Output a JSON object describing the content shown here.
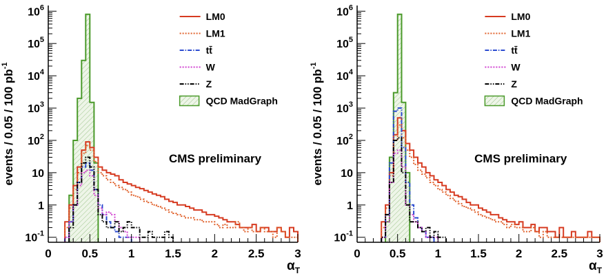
{
  "chart_data": [
    {
      "type": "line",
      "subtype": "step-histogram",
      "ylabel": "events / 0.05 / 100 pb",
      "ylabel_superscript": "-1",
      "xlabel": "α",
      "xlabel_subscript": "T",
      "annotation": "CMS preliminary",
      "yscale": "log",
      "xlim": [
        0,
        3
      ],
      "ylim": [
        0.07,
        1500000
      ],
      "bin_width": 0.05,
      "x_start": 0,
      "x_ticks": [
        "0",
        "0.5",
        "1",
        "1.5",
        "2",
        "2.5",
        "3"
      ],
      "y_ticks": [
        {
          "base": "10",
          "exp": "-1",
          "v": 0.1
        },
        {
          "base": "1",
          "exp": "",
          "v": 1
        },
        {
          "base": "10",
          "exp": "",
          "v": 10
        },
        {
          "base": "10",
          "exp": "2",
          "v": 100
        },
        {
          "base": "10",
          "exp": "3",
          "v": 1000
        },
        {
          "base": "10",
          "exp": "4",
          "v": 10000
        },
        {
          "base": "10",
          "exp": "5",
          "v": 100000
        },
        {
          "base": "10",
          "exp": "6",
          "v": 1000000
        }
      ],
      "legend_position": "top-right",
      "series": [
        {
          "name": "QCD MadGraph",
          "color": "#4a9a2a",
          "style": "solid",
          "fill": true,
          "values": [
            0,
            0,
            0,
            0,
            0,
            2,
            100,
            2000,
            30000,
            800000,
            1500,
            20,
            0,
            0,
            0,
            0,
            0,
            0,
            0,
            0,
            0,
            0,
            0,
            0,
            0,
            0,
            0,
            0,
            0,
            0,
            0,
            0,
            0,
            0,
            0,
            0,
            0,
            0,
            0,
            0,
            0,
            0,
            0,
            0,
            0,
            0,
            0,
            0,
            0,
            0,
            0,
            0,
            0,
            0,
            0,
            0,
            0,
            0,
            0,
            0
          ]
        },
        {
          "name": "LM0",
          "color": "#d63a20",
          "style": "solid",
          "values": [
            0,
            0,
            0,
            0,
            0.3,
            1,
            4,
            15,
            50,
            90,
            60,
            30,
            15,
            12,
            10,
            9,
            8,
            6,
            5,
            4.5,
            4,
            3.5,
            3.2,
            2.8,
            2.5,
            2.2,
            2,
            1.8,
            1.5,
            1.3,
            1.2,
            1,
            1,
            0.9,
            0.8,
            0.7,
            0.7,
            0.6,
            0.5,
            0.5,
            0.45,
            0.4,
            0.35,
            0.3,
            0.3,
            0.25,
            0.2,
            0.2,
            0.2,
            0.25,
            0.15,
            0.2,
            0.2,
            0.15,
            0.15,
            0.2,
            0.15,
            0.1,
            0.2,
            0.15
          ]
        },
        {
          "name": "LM1",
          "color": "#e0602a",
          "style": "dotted",
          "values": [
            0,
            0,
            0,
            0,
            0.2,
            0.8,
            3,
            10,
            40,
            70,
            50,
            22,
            10,
            8,
            6,
            5,
            4,
            3.5,
            3,
            2.5,
            2,
            1.8,
            1.5,
            1.3,
            1.2,
            1,
            0.9,
            0.8,
            0.7,
            0.6,
            0.55,
            0.5,
            0.45,
            0.4,
            0.4,
            0.35,
            0.35,
            0.3,
            0.3,
            0.3,
            0.25,
            0.2,
            0.25,
            0.2,
            0.2,
            0.3,
            0.2,
            0.15,
            0.2,
            0.15,
            0.15,
            0.2,
            0.15,
            0.15,
            0.1,
            0.2,
            0.15,
            0.1,
            0.1,
            0.1
          ]
        },
        {
          "name": "tt̄",
          "color": "#2a4ad0",
          "style": "dashdot",
          "values": [
            0,
            0,
            0,
            0,
            0.1,
            0.3,
            1,
            5,
            15,
            20,
            12,
            3,
            1,
            0.5,
            0.3,
            0.2,
            0.15,
            0.1,
            0.1,
            0.1,
            0,
            0,
            0,
            0,
            0,
            0,
            0,
            0,
            0,
            0,
            0,
            0,
            0,
            0,
            0,
            0,
            0,
            0,
            0,
            0,
            0,
            0,
            0,
            0,
            0,
            0,
            0,
            0,
            0,
            0,
            0,
            0,
            0,
            0,
            0,
            0,
            0,
            0,
            0,
            0
          ]
        },
        {
          "name": "W",
          "color": "#d040d0",
          "style": "dotted",
          "values": [
            0,
            0,
            0,
            0,
            0.1,
            0.3,
            1,
            4,
            10,
            12,
            8,
            2,
            0.8,
            0.5,
            0.6,
            0.5,
            0.3,
            0.2,
            0.15,
            0.1,
            0.1,
            0.1,
            0,
            0,
            0,
            0,
            0,
            0,
            0,
            0,
            0,
            0,
            0,
            0,
            0,
            0,
            0,
            0,
            0,
            0,
            0,
            0,
            0,
            0,
            0,
            0,
            0,
            0,
            0,
            0,
            0,
            0,
            0,
            0,
            0,
            0,
            0,
            0,
            0,
            0
          ]
        },
        {
          "name": "Z",
          "color": "#000000",
          "style": "dashdotdot",
          "values": [
            0,
            0,
            0,
            0,
            0,
            0.2,
            1,
            5,
            20,
            30,
            15,
            3,
            0.5,
            0.3,
            0.2,
            0.2,
            0.3,
            0.15,
            0.2,
            0.3,
            0.2,
            0.2,
            0.1,
            0.1,
            0.15,
            0.1,
            0.1,
            0.1,
            0.15,
            0.1,
            0,
            0,
            0,
            0,
            0,
            0,
            0,
            0,
            0,
            0,
            0,
            0,
            0,
            0,
            0,
            0,
            0,
            0,
            0,
            0,
            0,
            0,
            0,
            0,
            0,
            0,
            0,
            0,
            0,
            0
          ]
        }
      ]
    },
    {
      "type": "line",
      "subtype": "step-histogram",
      "ylabel": "events / 0.05 / 100 pb",
      "ylabel_superscript": "-1",
      "xlabel": "α",
      "xlabel_subscript": "T",
      "annotation": "CMS preliminary",
      "yscale": "log",
      "xlim": [
        0,
        3
      ],
      "ylim": [
        0.07,
        1500000
      ],
      "bin_width": 0.05,
      "x_start": 0,
      "x_ticks": [
        "0",
        "0.5",
        "1",
        "1.5",
        "2",
        "2.5",
        "3"
      ],
      "y_ticks": [
        {
          "base": "10",
          "exp": "-1",
          "v": 0.1
        },
        {
          "base": "1",
          "exp": "",
          "v": 1
        },
        {
          "base": "10",
          "exp": "",
          "v": 10
        },
        {
          "base": "10",
          "exp": "2",
          "v": 100
        },
        {
          "base": "10",
          "exp": "3",
          "v": 1000
        },
        {
          "base": "10",
          "exp": "4",
          "v": 10000
        },
        {
          "base": "10",
          "exp": "5",
          "v": 100000
        },
        {
          "base": "10",
          "exp": "6",
          "v": 1000000
        }
      ],
      "legend_position": "top-right",
      "series": [
        {
          "name": "QCD MadGraph",
          "color": "#4a9a2a",
          "style": "solid",
          "fill": true,
          "values": [
            0,
            0,
            0,
            0,
            0,
            0,
            0,
            0.3,
            30,
            3000,
            800000,
            1500,
            10,
            0,
            0,
            0,
            0,
            0,
            0,
            0,
            0,
            0,
            0,
            0,
            0,
            0,
            0,
            0,
            0,
            0,
            0,
            0,
            0,
            0,
            0,
            0,
            0,
            0,
            0,
            0,
            0,
            0,
            0,
            0,
            0,
            0,
            0,
            0,
            0,
            0,
            0,
            0,
            0,
            0,
            0,
            0,
            0,
            0,
            0,
            0
          ]
        },
        {
          "name": "LM0",
          "color": "#d63a20",
          "style": "solid",
          "values": [
            0,
            0,
            0,
            0,
            0,
            0,
            0.3,
            1,
            10,
            150,
            500,
            200,
            80,
            50,
            30,
            20,
            15,
            10,
            8,
            6,
            5,
            4,
            3,
            2.5,
            2,
            1.8,
            1.5,
            1.2,
            1,
            1,
            0.8,
            0.7,
            0.6,
            0.5,
            0.5,
            0.4,
            0.35,
            0.3,
            0.3,
            0.25,
            0.3,
            0.2,
            0.2,
            0.25,
            0.15,
            0.2,
            0.2,
            0.15,
            0.15,
            0.1,
            0.2,
            0.1,
            0.1,
            0.15,
            0.1,
            0.1,
            0.1,
            0.15,
            0.1,
            0.1
          ]
        },
        {
          "name": "LM1",
          "color": "#e0602a",
          "style": "dotted",
          "values": [
            0,
            0,
            0,
            0,
            0,
            0,
            0.2,
            0.8,
            8,
            100,
            300,
            120,
            50,
            30,
            18,
            12,
            9,
            7,
            5,
            4,
            3,
            2.5,
            2,
            1.6,
            1.3,
            1.1,
            0.9,
            0.8,
            0.7,
            0.6,
            0.5,
            0.45,
            0.4,
            0.35,
            0.3,
            0.3,
            0.25,
            0.2,
            0.25,
            0.2,
            0.2,
            0.15,
            0.15,
            0.2,
            0.15,
            0.1,
            0.15,
            0.1,
            0.1,
            0.1,
            0.1,
            0.1,
            0.1,
            0.1,
            0.1,
            0.1,
            0.1,
            0.1,
            0.1,
            0.1
          ]
        },
        {
          "name": "tt̄",
          "color": "#2a4ad0",
          "style": "dashdot",
          "values": [
            0,
            0,
            0,
            0,
            0,
            0,
            0.1,
            0.5,
            20,
            800,
            1000,
            60,
            5,
            1,
            0.4,
            0.2,
            0.15,
            0.1,
            0.1,
            0,
            0,
            0,
            0,
            0,
            0,
            0,
            0,
            0,
            0,
            0,
            0,
            0,
            0,
            0,
            0,
            0,
            0,
            0,
            0,
            0,
            0,
            0,
            0,
            0,
            0,
            0,
            0,
            0,
            0,
            0,
            0,
            0,
            0,
            0,
            0,
            0,
            0,
            0,
            0,
            0
          ]
        },
        {
          "name": "W",
          "color": "#d040d0",
          "style": "dotted",
          "values": [
            0,
            0,
            0,
            0,
            0,
            0,
            0.1,
            0.3,
            5,
            40,
            50,
            15,
            1,
            0.5,
            0.3,
            0.2,
            0.15,
            0.1,
            0.1,
            0.1,
            0,
            0,
            0,
            0,
            0,
            0,
            0,
            0,
            0,
            0,
            0,
            0,
            0,
            0,
            0,
            0,
            0,
            0,
            0,
            0,
            0,
            0,
            0,
            0,
            0,
            0,
            0,
            0,
            0,
            0,
            0,
            0,
            0,
            0,
            0,
            0,
            0,
            0,
            0,
            0
          ]
        },
        {
          "name": "Z",
          "color": "#000000",
          "style": "dashdotdot",
          "values": [
            0,
            0,
            0,
            0,
            0,
            0,
            0.1,
            0.5,
            5,
            100,
            120,
            10,
            1,
            0.3,
            0.3,
            0.2,
            0.15,
            0.2,
            0.1,
            0.15,
            0.1,
            0.1,
            0,
            0,
            0,
            0,
            0,
            0,
            0,
            0,
            0,
            0,
            0,
            0,
            0,
            0,
            0,
            0,
            0,
            0,
            0,
            0,
            0,
            0,
            0,
            0,
            0,
            0,
            0,
            0,
            0,
            0,
            0,
            0,
            0,
            0,
            0,
            0,
            0,
            0
          ]
        }
      ]
    }
  ]
}
